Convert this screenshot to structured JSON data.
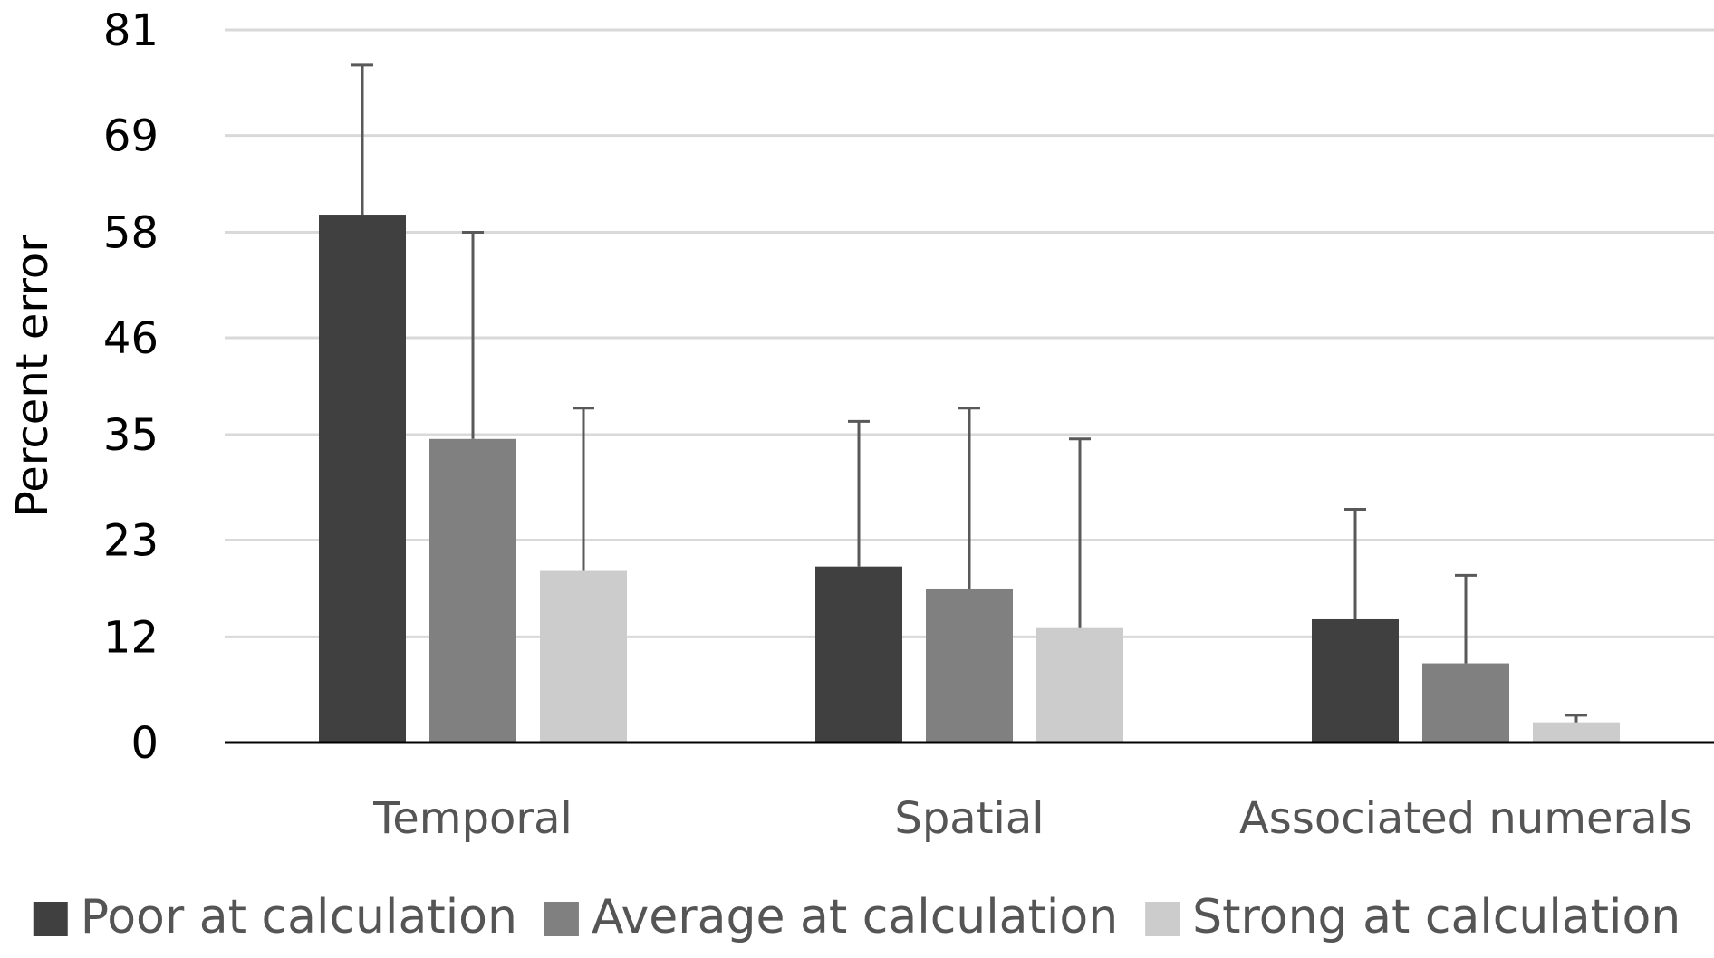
{
  "chart_data": {
    "type": "bar",
    "categories": [
      "Temporal",
      "Spatial",
      "Associated numerals"
    ],
    "series": [
      {
        "name": "Poor at calculation",
        "color": "#404040",
        "values": [
          60,
          20,
          14
        ],
        "error": [
          17,
          16.5,
          12.5
        ]
      },
      {
        "name": "Average at calculation",
        "color": "#808080",
        "values": [
          34.5,
          17.5,
          9
        ],
        "error": [
          23.5,
          20.5,
          10
        ]
      },
      {
        "name": "Strong at calculation",
        "color": "#cccccc",
        "values": [
          19.5,
          13,
          2.3
        ],
        "error": [
          18.5,
          21.5,
          0.8
        ]
      }
    ],
    "yticks": [
      "0",
      "12",
      "23",
      "35",
      "46",
      "58",
      "69",
      "81"
    ],
    "ylim": [
      0,
      81
    ],
    "ylabel": "Percent error",
    "xlabel": "",
    "grid": true,
    "legend_position": "bottom"
  }
}
